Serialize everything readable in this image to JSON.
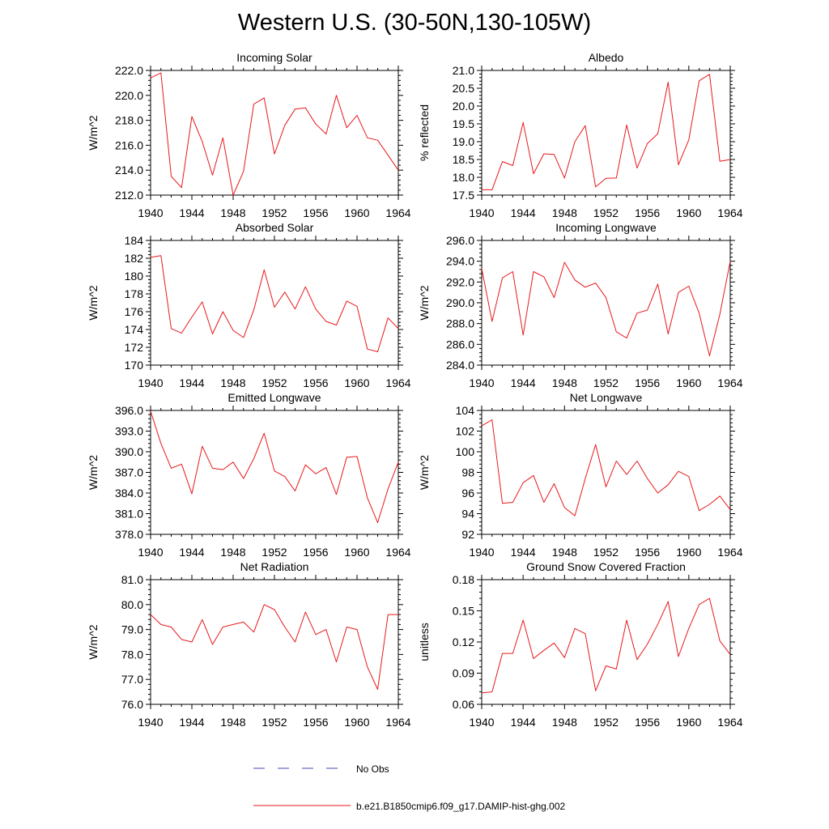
{
  "page": {
    "title": "Western U.S. (30-50N,130-105W)"
  },
  "colors": {
    "model": "#e8181b",
    "obs": "#4a4ab8",
    "axis": "#000000"
  },
  "legend": {
    "obs_label": "No Obs",
    "model_label": "b.e21.B1850cmip6.f09_g17.DAMIP-hist-ghg.002"
  },
  "chart_data": [
    {
      "type": "line",
      "title": "Incoming Solar",
      "ylabel": "W/m^2",
      "xlim": [
        1940,
        1964
      ],
      "ylim": [
        212,
        222
      ],
      "xticks": [
        1940,
        1944,
        1948,
        1952,
        1956,
        1960,
        1964
      ],
      "yticks": [
        212,
        214,
        216,
        218,
        220,
        222
      ],
      "ytick_labels": [
        "212.0",
        "214.0",
        "216.0",
        "218.0",
        "220.0",
        "222.0"
      ],
      "x": [
        1940,
        1941,
        1942,
        1943,
        1944,
        1945,
        1946,
        1947,
        1948,
        1949,
        1950,
        1951,
        1952,
        1953,
        1954,
        1955,
        1956,
        1957,
        1958,
        1959,
        1960,
        1961,
        1962,
        1963,
        1964
      ],
      "series": [
        {
          "name": "b.e21.B1850cmip6.f09_g17.DAMIP-hist-ghg.002",
          "values": [
            221.4,
            221.8,
            213.5,
            212.6,
            218.3,
            216.3,
            213.6,
            216.6,
            212.0,
            213.9,
            219.3,
            219.8,
            215.3,
            217.6,
            218.9,
            219.0,
            217.7,
            216.9,
            220.0,
            217.4,
            218.4,
            216.6,
            216.4,
            215.2,
            214.0
          ]
        }
      ]
    },
    {
      "type": "line",
      "title": "Albedo",
      "ylabel": "% reflected",
      "xlim": [
        1940,
        1964
      ],
      "ylim": [
        17.5,
        21.0
      ],
      "xticks": [
        1940,
        1944,
        1948,
        1952,
        1956,
        1960,
        1964
      ],
      "yticks": [
        17.5,
        18.0,
        18.5,
        19.0,
        19.5,
        20.0,
        20.5,
        21.0
      ],
      "ytick_labels": [
        "17.5",
        "18.0",
        "18.5",
        "19.0",
        "19.5",
        "20.0",
        "20.5",
        "21.0"
      ],
      "x": [
        1940,
        1941,
        1942,
        1943,
        1944,
        1945,
        1946,
        1947,
        1948,
        1949,
        1950,
        1951,
        1952,
        1953,
        1954,
        1955,
        1956,
        1957,
        1958,
        1959,
        1960,
        1961,
        1962,
        1963,
        1964
      ],
      "series": [
        {
          "name": "b.e21.B1850cmip6.f09_g17.DAMIP-hist-ghg.002",
          "values": [
            17.65,
            17.65,
            18.44,
            18.33,
            19.54,
            18.1,
            18.66,
            18.64,
            17.98,
            19.0,
            19.45,
            17.73,
            17.97,
            17.98,
            19.47,
            18.26,
            18.95,
            19.22,
            20.67,
            18.35,
            19.05,
            20.71,
            20.89,
            18.45,
            18.5
          ]
        }
      ]
    },
    {
      "type": "line",
      "title": "Absorbed Solar",
      "ylabel": "W/m^2",
      "xlim": [
        1940,
        1964
      ],
      "ylim": [
        170,
        184
      ],
      "xticks": [
        1940,
        1944,
        1948,
        1952,
        1956,
        1960,
        1964
      ],
      "yticks": [
        170,
        172,
        174,
        176,
        178,
        180,
        182,
        184
      ],
      "ytick_labels": [
        "170",
        "172",
        "174",
        "176",
        "178",
        "180",
        "182",
        "184"
      ],
      "x": [
        1940,
        1941,
        1942,
        1943,
        1944,
        1945,
        1946,
        1947,
        1948,
        1949,
        1950,
        1951,
        1952,
        1953,
        1954,
        1955,
        1956,
        1957,
        1958,
        1959,
        1960,
        1961,
        1962,
        1963,
        1964
      ],
      "series": [
        {
          "name": "b.e21.B1850cmip6.f09_g17.DAMIP-hist-ghg.002",
          "values": [
            182.1,
            182.3,
            174.1,
            173.6,
            175.4,
            177.1,
            173.5,
            176.0,
            173.9,
            173.1,
            176.2,
            180.7,
            176.5,
            178.2,
            176.3,
            178.8,
            176.3,
            174.9,
            174.5,
            177.2,
            176.6,
            171.8,
            171.5,
            175.3,
            174.1
          ]
        }
      ]
    },
    {
      "type": "line",
      "title": "Incoming Longwave",
      "ylabel": "W/m^2",
      "xlim": [
        1940,
        1964
      ],
      "ylim": [
        284,
        296
      ],
      "xticks": [
        1940,
        1944,
        1948,
        1952,
        1956,
        1960,
        1964
      ],
      "yticks": [
        284,
        286,
        288,
        290,
        292,
        294,
        296
      ],
      "ytick_labels": [
        "284.0",
        "286.0",
        "288.0",
        "290.0",
        "292.0",
        "294.0",
        "296.0"
      ],
      "x": [
        1940,
        1941,
        1942,
        1943,
        1944,
        1945,
        1946,
        1947,
        1948,
        1949,
        1950,
        1951,
        1952,
        1953,
        1954,
        1955,
        1956,
        1957,
        1958,
        1959,
        1960,
        1961,
        1962,
        1963,
        1964
      ],
      "series": [
        {
          "name": "b.e21.B1850cmip6.f09_g17.DAMIP-hist-ghg.002",
          "values": [
            293.3,
            288.2,
            292.4,
            293.0,
            286.9,
            293.0,
            292.5,
            290.5,
            293.9,
            292.2,
            291.5,
            291.9,
            290.5,
            287.2,
            286.6,
            289.0,
            289.3,
            291.8,
            287.0,
            291.0,
            291.6,
            289.0,
            284.9,
            288.9,
            294.0
          ]
        }
      ]
    },
    {
      "type": "line",
      "title": "Emitted Longwave",
      "ylabel": "W/m^2",
      "xlim": [
        1940,
        1964
      ],
      "ylim": [
        378,
        396
      ],
      "xticks": [
        1940,
        1944,
        1948,
        1952,
        1956,
        1960,
        1964
      ],
      "yticks": [
        378,
        381,
        384,
        387,
        390,
        393,
        396
      ],
      "ytick_labels": [
        "378.0",
        "381.0",
        "384.0",
        "387.0",
        "390.0",
        "393.0",
        "396.0"
      ],
      "x": [
        1940,
        1941,
        1942,
        1943,
        1944,
        1945,
        1946,
        1947,
        1948,
        1949,
        1950,
        1951,
        1952,
        1953,
        1954,
        1955,
        1956,
        1957,
        1958,
        1959,
        1960,
        1961,
        1962,
        1963,
        1964
      ],
      "series": [
        {
          "name": "b.e21.B1850cmip6.f09_g17.DAMIP-hist-ghg.002",
          "values": [
            395.9,
            391.2,
            387.6,
            388.2,
            383.9,
            390.8,
            387.6,
            387.4,
            388.5,
            386.1,
            389.0,
            392.7,
            387.2,
            386.4,
            384.3,
            388.1,
            386.8,
            387.7,
            383.8,
            389.2,
            389.3,
            383.3,
            379.7,
            384.6,
            388.5
          ]
        }
      ]
    },
    {
      "type": "line",
      "title": "Net Longwave",
      "ylabel": "W/m^2",
      "xlim": [
        1940,
        1964
      ],
      "ylim": [
        92,
        104
      ],
      "xticks": [
        1940,
        1944,
        1948,
        1952,
        1956,
        1960,
        1964
      ],
      "yticks": [
        92,
        94,
        96,
        98,
        100,
        102,
        104
      ],
      "ytick_labels": [
        "92",
        "94",
        "96",
        "98",
        "100",
        "102",
        "104"
      ],
      "x": [
        1940,
        1941,
        1942,
        1943,
        1944,
        1945,
        1946,
        1947,
        1948,
        1949,
        1950,
        1951,
        1952,
        1953,
        1954,
        1955,
        1956,
        1957,
        1958,
        1959,
        1960,
        1961,
        1962,
        1963,
        1964
      ],
      "series": [
        {
          "name": "b.e21.B1850cmip6.f09_g17.DAMIP-hist-ghg.002",
          "values": [
            102.5,
            103.1,
            95.0,
            95.1,
            97.0,
            97.7,
            95.1,
            96.9,
            94.6,
            93.8,
            97.4,
            100.7,
            96.6,
            99.1,
            97.8,
            99.1,
            97.4,
            96.0,
            96.8,
            98.1,
            97.6,
            94.3,
            94.9,
            95.7,
            94.4
          ]
        }
      ]
    },
    {
      "type": "line",
      "title": "Net Radiation",
      "ylabel": "W/m^2",
      "xlim": [
        1940,
        1964
      ],
      "ylim": [
        76,
        81
      ],
      "xticks": [
        1940,
        1944,
        1948,
        1952,
        1956,
        1960,
        1964
      ],
      "yticks": [
        76,
        77,
        78,
        79,
        80,
        81
      ],
      "ytick_labels": [
        "76.0",
        "77.0",
        "78.0",
        "79.0",
        "80.0",
        "81.0"
      ],
      "x": [
        1940,
        1941,
        1942,
        1943,
        1944,
        1945,
        1946,
        1947,
        1948,
        1949,
        1950,
        1951,
        1952,
        1953,
        1954,
        1955,
        1956,
        1957,
        1958,
        1959,
        1960,
        1961,
        1962,
        1963,
        1964
      ],
      "series": [
        {
          "name": "b.e21.B1850cmip6.f09_g17.DAMIP-hist-ghg.002",
          "values": [
            79.6,
            79.2,
            79.1,
            78.6,
            78.5,
            79.4,
            78.4,
            79.1,
            79.2,
            79.3,
            78.9,
            80.0,
            79.8,
            79.1,
            78.5,
            79.7,
            78.8,
            79.0,
            77.7,
            79.1,
            79.0,
            77.5,
            76.6,
            79.6,
            79.6
          ]
        }
      ]
    },
    {
      "type": "line",
      "title": "Ground Snow Covered Fraction",
      "ylabel": "unitless",
      "xlim": [
        1940,
        1964
      ],
      "ylim": [
        0.06,
        0.18
      ],
      "xticks": [
        1940,
        1944,
        1948,
        1952,
        1956,
        1960,
        1964
      ],
      "yticks": [
        0.06,
        0.09,
        0.12,
        0.15,
        0.18
      ],
      "ytick_labels": [
        "0.06",
        "0.09",
        "0.12",
        "0.15",
        "0.18"
      ],
      "x": [
        1940,
        1941,
        1942,
        1943,
        1944,
        1945,
        1946,
        1947,
        1948,
        1949,
        1950,
        1951,
        1952,
        1953,
        1954,
        1955,
        1956,
        1957,
        1958,
        1959,
        1960,
        1961,
        1962,
        1963,
        1964
      ],
      "series": [
        {
          "name": "b.e21.B1850cmip6.f09_g17.DAMIP-hist-ghg.002",
          "values": [
            0.071,
            0.072,
            0.109,
            0.109,
            0.141,
            0.104,
            0.112,
            0.119,
            0.105,
            0.133,
            0.128,
            0.073,
            0.097,
            0.094,
            0.141,
            0.103,
            0.118,
            0.137,
            0.159,
            0.106,
            0.133,
            0.156,
            0.162,
            0.121,
            0.108
          ]
        }
      ]
    }
  ]
}
